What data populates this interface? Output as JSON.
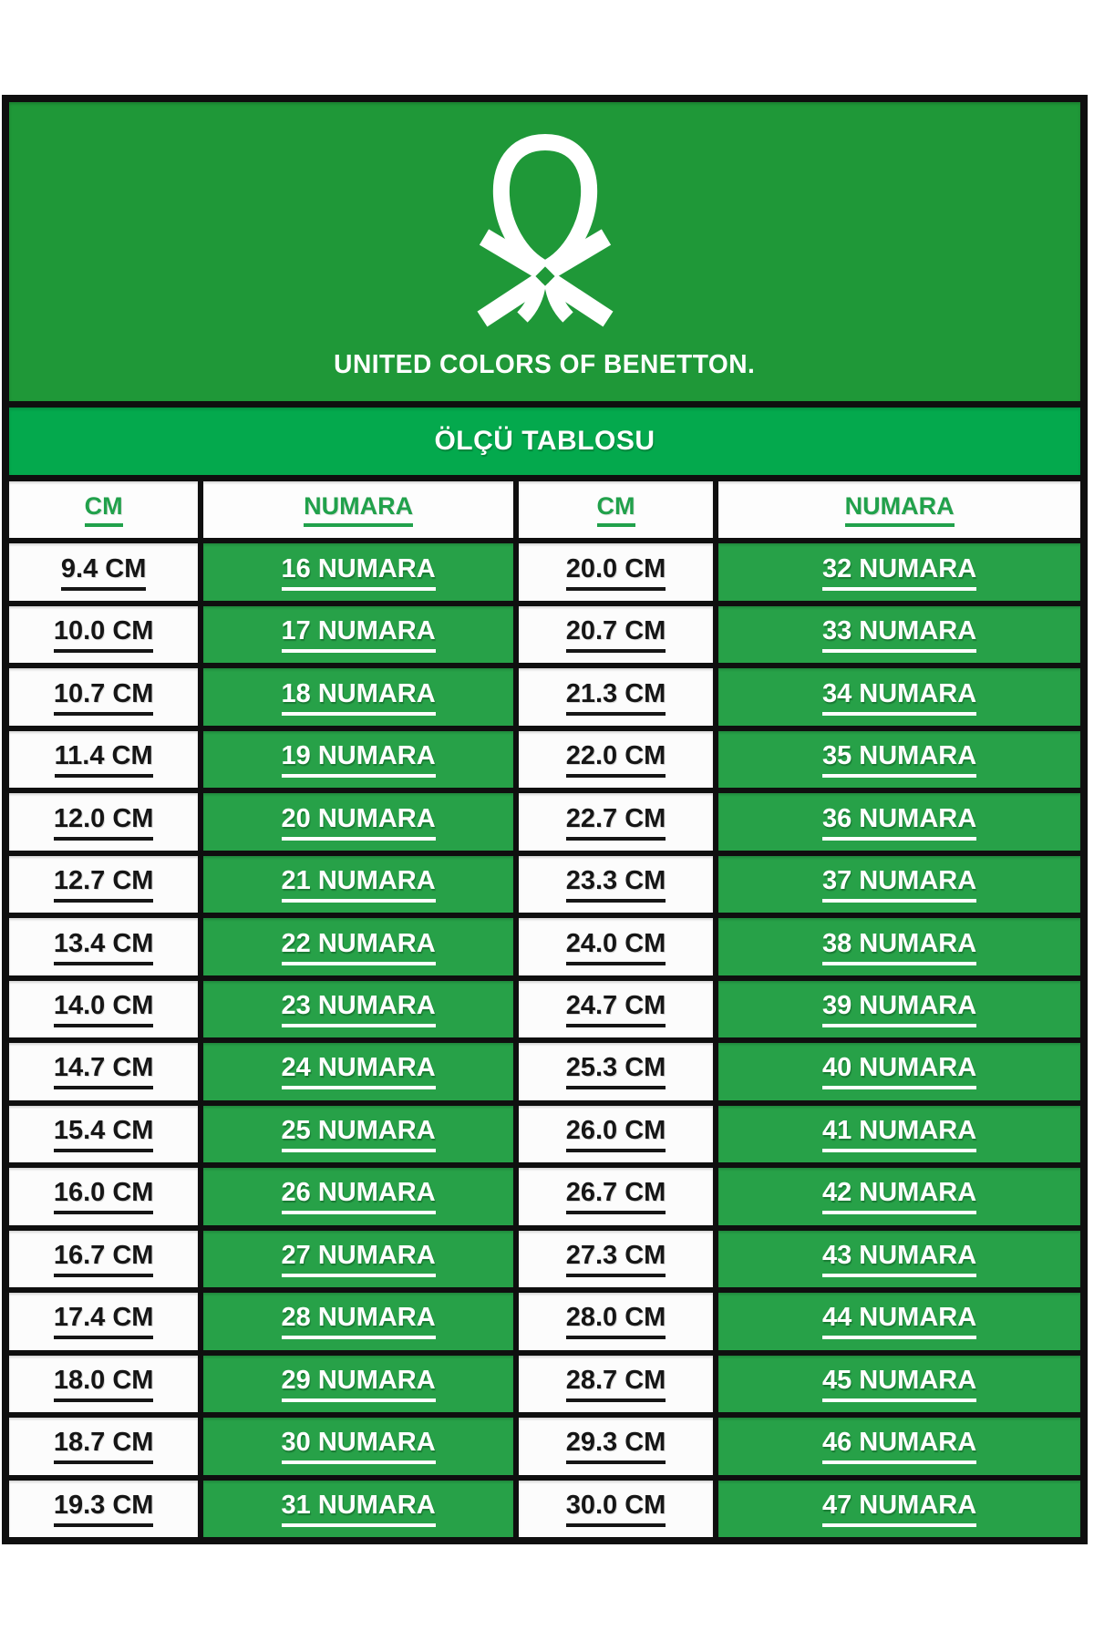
{
  "brand": {
    "logo": "benetton-knot-logo",
    "wordmark": "UNITED COLORS OF BENETTON."
  },
  "banner": {
    "title": "ÖLÇÜ TABLOSU"
  },
  "size_table": {
    "headers": [
      "CM",
      "NUMARA",
      "CM",
      "NUMARA"
    ],
    "rows": [
      [
        "9.4 CM",
        "16 NUMARA",
        "20.0 CM",
        "32 NUMARA"
      ],
      [
        "10.0 CM",
        "17 NUMARA",
        "20.7 CM",
        "33 NUMARA"
      ],
      [
        "10.7 CM",
        "18 NUMARA",
        "21.3 CM",
        "34 NUMARA"
      ],
      [
        "11.4 CM",
        "19 NUMARA",
        "22.0 CM",
        "35 NUMARA"
      ],
      [
        "12.0 CM",
        "20 NUMARA",
        "22.7 CM",
        "36 NUMARA"
      ],
      [
        "12.7 CM",
        "21 NUMARA",
        "23.3 CM",
        "37 NUMARA"
      ],
      [
        "13.4 CM",
        "22 NUMARA",
        "24.0 CM",
        "38 NUMARA"
      ],
      [
        "14.0 CM",
        "23 NUMARA",
        "24.7 CM",
        "39 NUMARA"
      ],
      [
        "14.7 CM",
        "24 NUMARA",
        "25.3 CM",
        "40 NUMARA"
      ],
      [
        "15.4 CM",
        "25 NUMARA",
        "26.0 CM",
        "41 NUMARA"
      ],
      [
        "16.0 CM",
        "26 NUMARA",
        "26.7 CM",
        "42 NUMARA"
      ],
      [
        "16.7 CM",
        "27 NUMARA",
        "27.3 CM",
        "43 NUMARA"
      ],
      [
        "17.4 CM",
        "28 NUMARA",
        "28.0 CM",
        "44 NUMARA"
      ],
      [
        "18.0 CM",
        "29 NUMARA",
        "28.7 CM",
        "45 NUMARA"
      ],
      [
        "18.7 CM",
        "30 NUMARA",
        "29.3 CM",
        "46 NUMARA"
      ],
      [
        "19.3 CM",
        "31 NUMARA",
        "30.0 CM",
        "47 NUMARA"
      ]
    ]
  },
  "colors": {
    "panel_green": "#1F9838",
    "banner_green": "#04A94D",
    "cell_green": "#27A148",
    "header_text_green": "#21A14B"
  }
}
